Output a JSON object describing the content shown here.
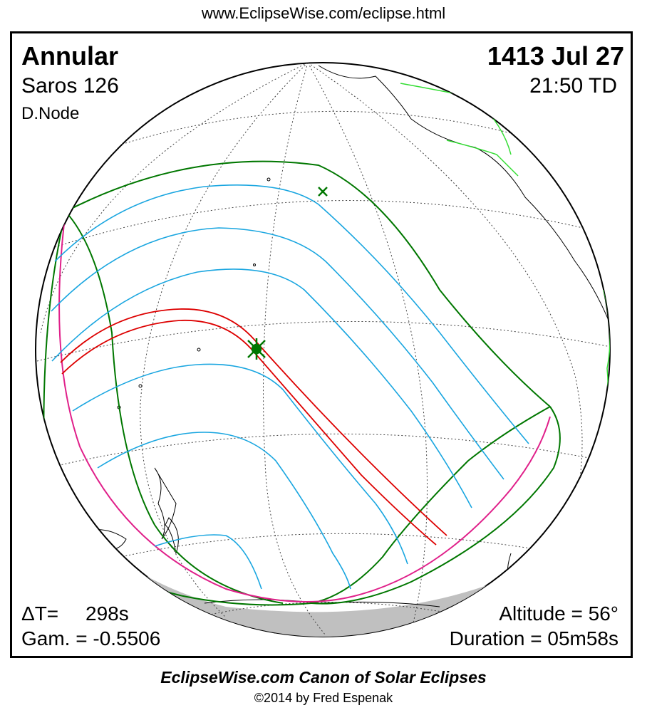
{
  "header": {
    "url": "www.EclipseWise.com/eclipse.html"
  },
  "eclipse": {
    "type": "Annular",
    "date": "1413 Jul 27",
    "saros": "Saros 126",
    "time": "21:50 TD",
    "node": "D.Node"
  },
  "stats": {
    "delta_t_label": "ΔT=",
    "delta_t_value": "298s",
    "gamma": "Gam. = -0.5506",
    "altitude": "Altitude = 56°",
    "duration": "Duration = 05m58s"
  },
  "footer": {
    "title": "EclipseWise.com Canon of Solar Eclipses",
    "copyright": "©2014 by Fred Espenak"
  },
  "colors": {
    "central_path": "#dd0000",
    "penumbra_limits": "#007700",
    "partial_lines": "#1aa6e0",
    "rise_set_curve": "#e0208a",
    "coastline_highlight": "#33dd33",
    "night_side": "#c0c0c0"
  }
}
